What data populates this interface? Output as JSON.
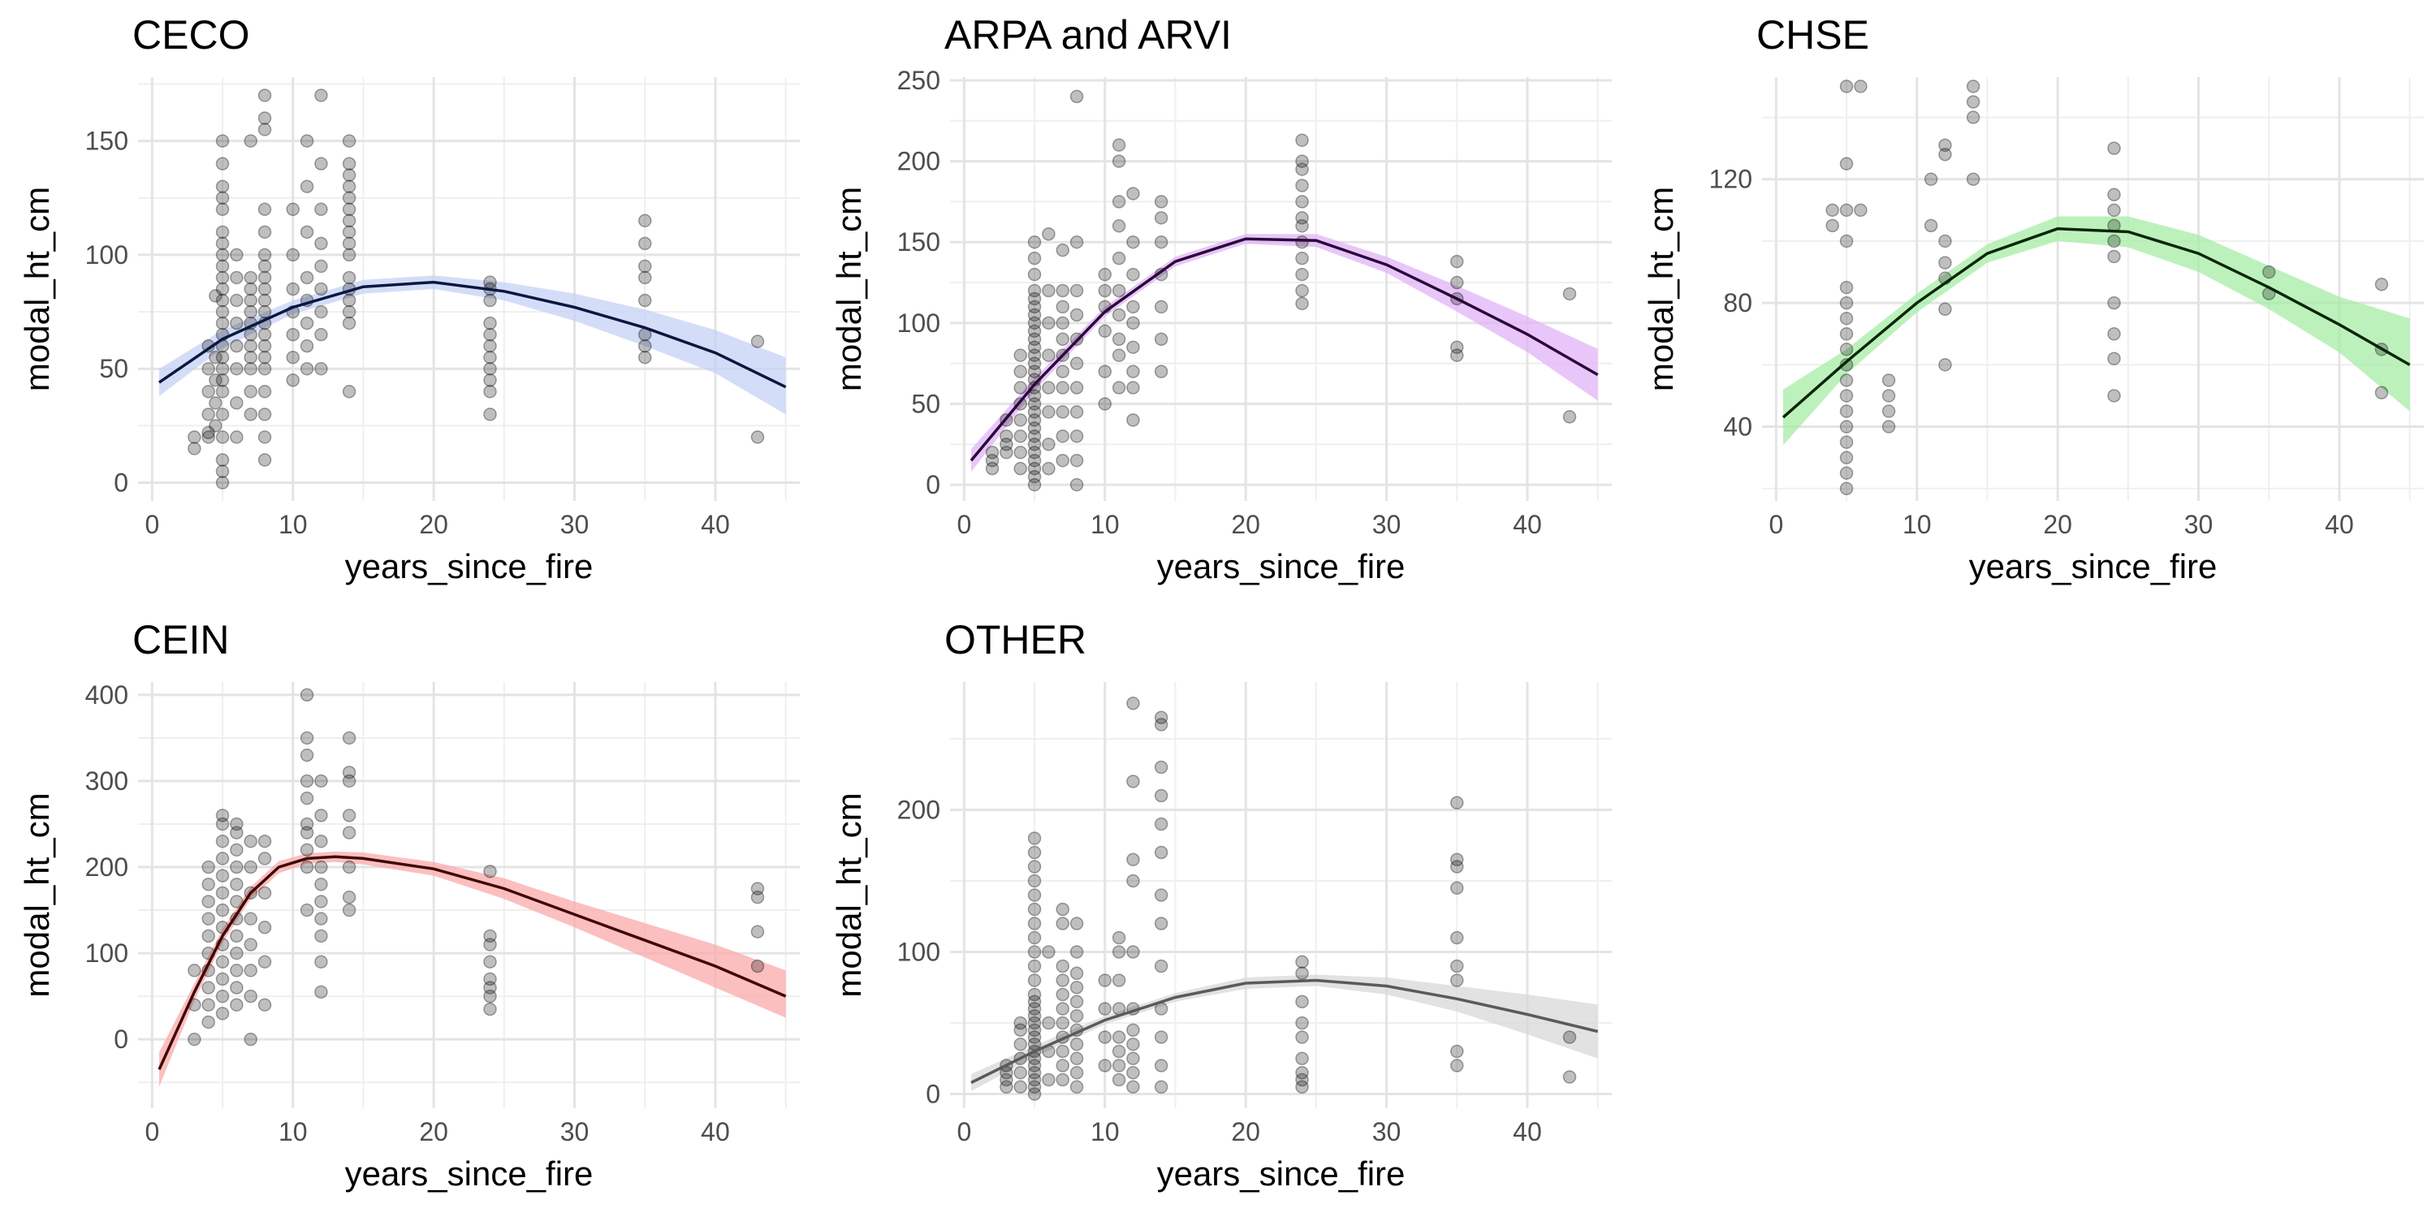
{
  "chart_data": [
    {
      "type": "scatter",
      "title": "CECO",
      "xlabel": "years_since_fire",
      "ylabel": "modal_ht_cm",
      "xlim": [
        -1,
        46
      ],
      "ylim": [
        -8,
        178
      ],
      "xticks": [
        0,
        10,
        20,
        30,
        40
      ],
      "yticks": [
        0,
        50,
        100,
        150
      ],
      "grid": true,
      "fill_color": "#c6d2f6",
      "line_color": "#0b1740",
      "points": [
        {
          "x": 3,
          "values": [
            15,
            20
          ]
        },
        {
          "x": 4,
          "values": [
            20,
            22,
            30,
            40,
            50,
            60
          ]
        },
        {
          "x": 4.5,
          "values": [
            25,
            35,
            45,
            55,
            82
          ]
        },
        {
          "x": 5,
          "values": [
            0,
            5,
            10,
            20,
            30,
            40,
            45,
            50,
            55,
            60,
            65,
            70,
            75,
            80,
            85,
            90,
            95,
            100,
            105,
            110,
            120,
            125,
            130,
            140,
            150
          ]
        },
        {
          "x": 6,
          "values": [
            20,
            35,
            50,
            60,
            70,
            80,
            90,
            100
          ]
        },
        {
          "x": 7,
          "values": [
            30,
            40,
            50,
            55,
            60,
            65,
            70,
            75,
            80,
            85,
            90,
            150
          ]
        },
        {
          "x": 8,
          "values": [
            10,
            20,
            30,
            40,
            50,
            55,
            60,
            65,
            70,
            75,
            80,
            85,
            90,
            95,
            100,
            110,
            120,
            155,
            160,
            170
          ]
        },
        {
          "x": 10,
          "values": [
            45,
            55,
            65,
            75,
            85,
            100,
            120
          ]
        },
        {
          "x": 11,
          "values": [
            50,
            60,
            70,
            80,
            90,
            110,
            130,
            150
          ]
        },
        {
          "x": 12,
          "values": [
            50,
            65,
            75,
            85,
            95,
            105,
            120,
            140,
            170
          ]
        },
        {
          "x": 14,
          "values": [
            40,
            70,
            75,
            80,
            85,
            90,
            100,
            105,
            110,
            115,
            120,
            125,
            130,
            135,
            140,
            150
          ]
        },
        {
          "x": 24,
          "values": [
            30,
            40,
            45,
            50,
            55,
            60,
            65,
            70,
            80,
            85,
            88
          ]
        },
        {
          "x": 35,
          "values": [
            55,
            60,
            65,
            80,
            90,
            95,
            105,
            115
          ]
        },
        {
          "x": 43,
          "values": [
            20,
            62
          ]
        }
      ],
      "fit": {
        "x": [
          0.5,
          5,
          10,
          15,
          20,
          25,
          30,
          35,
          40,
          45
        ],
        "y": [
          44,
          63,
          77,
          86,
          88,
          84,
          77,
          68,
          57,
          42
        ]
      },
      "band": {
        "lower": [
          38,
          59,
          74,
          83,
          85,
          80,
          71,
          60,
          48,
          30
        ],
        "upper": [
          50,
          67,
          80,
          89,
          91,
          88,
          83,
          76,
          67,
          55
        ]
      }
    },
    {
      "type": "scatter",
      "title": "ARPA and ARVI",
      "xlabel": "years_since_fire",
      "ylabel": "modal_ht_cm",
      "xlim": [
        -1,
        46
      ],
      "ylim": [
        -10,
        252
      ],
      "xticks": [
        0,
        10,
        20,
        30,
        40
      ],
      "yticks": [
        0,
        50,
        100,
        150,
        200,
        250
      ],
      "grid": true,
      "fill_color": "#e2b3f7",
      "line_color": "#2a0a3a",
      "points": [
        {
          "x": 2,
          "values": [
            10,
            15,
            20
          ]
        },
        {
          "x": 3,
          "values": [
            20,
            25,
            30,
            40
          ]
        },
        {
          "x": 4,
          "values": [
            10,
            20,
            30,
            40,
            50,
            60,
            70,
            80
          ]
        },
        {
          "x": 5,
          "values": [
            0,
            5,
            10,
            15,
            20,
            25,
            30,
            35,
            40,
            45,
            50,
            55,
            60,
            65,
            70,
            75,
            80,
            85,
            90,
            95,
            100,
            105,
            110,
            115,
            120,
            130,
            140,
            150
          ]
        },
        {
          "x": 6,
          "values": [
            10,
            25,
            45,
            60,
            80,
            100,
            120,
            155
          ]
        },
        {
          "x": 7,
          "values": [
            15,
            30,
            45,
            60,
            70,
            80,
            90,
            100,
            110,
            120,
            145
          ]
        },
        {
          "x": 8,
          "values": [
            0,
            15,
            30,
            45,
            60,
            75,
            90,
            105,
            120,
            150,
            240
          ]
        },
        {
          "x": 10,
          "values": [
            50,
            70,
            95,
            110,
            120,
            130
          ]
        },
        {
          "x": 11,
          "values": [
            60,
            80,
            90,
            105,
            120,
            140,
            160,
            175,
            200,
            210
          ]
        },
        {
          "x": 12,
          "values": [
            40,
            60,
            70,
            85,
            100,
            110,
            130,
            150,
            180
          ]
        },
        {
          "x": 14,
          "values": [
            70,
            90,
            110,
            130,
            150,
            165,
            175
          ]
        },
        {
          "x": 24,
          "values": [
            112,
            120,
            130,
            140,
            150,
            160,
            165,
            175,
            185,
            195,
            200,
            213
          ]
        },
        {
          "x": 35,
          "values": [
            80,
            85,
            115,
            125,
            138
          ]
        },
        {
          "x": 43,
          "values": [
            42,
            118
          ]
        }
      ],
      "fit": {
        "x": [
          0.5,
          5,
          10,
          15,
          20,
          25,
          30,
          35,
          40,
          45
        ],
        "y": [
          15,
          62,
          107,
          138,
          152,
          151,
          136,
          115,
          93,
          68
        ]
      },
      "band": {
        "lower": [
          8,
          58,
          104,
          135,
          149,
          147,
          131,
          107,
          82,
          52
        ],
        "upper": [
          22,
          66,
          110,
          141,
          155,
          155,
          141,
          123,
          104,
          84
        ]
      }
    },
    {
      "type": "scatter",
      "title": "CHSE",
      "xlabel": "years_since_fire",
      "ylabel": "modal_ht_cm",
      "xlim": [
        -1,
        46
      ],
      "ylim": [
        16,
        153
      ],
      "xticks": [
        0,
        10,
        20,
        30,
        40
      ],
      "yticks": [
        40,
        80,
        120
      ],
      "grid": true,
      "fill_color": "#a6eca6",
      "line_color": "#0a260a",
      "points": [
        {
          "x": 4,
          "values": [
            105,
            110
          ]
        },
        {
          "x": 5,
          "values": [
            20,
            25,
            30,
            35,
            40,
            45,
            50,
            55,
            60,
            65,
            70,
            75,
            80,
            85,
            100,
            110,
            125,
            150
          ]
        },
        {
          "x": 6,
          "values": [
            110,
            150
          ]
        },
        {
          "x": 8,
          "values": [
            40,
            45,
            50,
            55
          ]
        },
        {
          "x": 11,
          "values": [
            105,
            120
          ]
        },
        {
          "x": 12,
          "values": [
            60,
            78,
            88,
            93,
            100,
            128,
            131
          ]
        },
        {
          "x": 14,
          "values": [
            120,
            140,
            145,
            150
          ]
        },
        {
          "x": 24,
          "values": [
            50,
            62,
            70,
            80,
            95,
            100,
            105,
            110,
            115,
            130
          ]
        },
        {
          "x": 35,
          "values": [
            83,
            90
          ]
        },
        {
          "x": 43,
          "values": [
            51,
            65,
            86
          ]
        }
      ],
      "fit": {
        "x": [
          0.5,
          5,
          10,
          15,
          20,
          25,
          30,
          35,
          40,
          45
        ],
        "y": [
          43,
          61,
          80,
          96,
          104,
          103,
          96,
          85,
          73,
          60
        ]
      },
      "band": {
        "lower": [
          34,
          57,
          77,
          93,
          100,
          98,
          90,
          78,
          64,
          45
        ],
        "upper": [
          52,
          65,
          83,
          99,
          108,
          108,
          102,
          92,
          82,
          75
        ]
      }
    },
    {
      "type": "scatter",
      "title": "CEIN",
      "xlabel": "years_since_fire",
      "ylabel": "modal_ht_cm",
      "xlim": [
        -1,
        46
      ],
      "ylim": [
        -80,
        415
      ],
      "xticks": [
        0,
        10,
        20,
        30,
        40
      ],
      "yticks": [
        0,
        100,
        200,
        300,
        400
      ],
      "grid": true,
      "fill_color": "#fbaaaa",
      "line_color": "#400808",
      "points": [
        {
          "x": 3,
          "values": [
            0,
            40,
            80
          ]
        },
        {
          "x": 4,
          "values": [
            20,
            40,
            60,
            80,
            100,
            120,
            140,
            160,
            180,
            200
          ]
        },
        {
          "x": 5,
          "values": [
            30,
            50,
            70,
            90,
            110,
            130,
            150,
            170,
            190,
            210,
            230,
            250,
            260
          ]
        },
        {
          "x": 6,
          "values": [
            40,
            60,
            80,
            100,
            120,
            140,
            160,
            180,
            200,
            220,
            240,
            250
          ]
        },
        {
          "x": 7,
          "values": [
            0,
            50,
            80,
            110,
            140,
            170,
            200,
            230
          ]
        },
        {
          "x": 8,
          "values": [
            40,
            90,
            130,
            170,
            210,
            230
          ]
        },
        {
          "x": 11,
          "values": [
            150,
            200,
            220,
            240,
            250,
            280,
            300,
            330,
            350,
            400
          ]
        },
        {
          "x": 12,
          "values": [
            55,
            90,
            120,
            140,
            160,
            180,
            200,
            230,
            260,
            300
          ]
        },
        {
          "x": 14,
          "values": [
            150,
            165,
            200,
            240,
            260,
            300,
            310,
            350
          ]
        },
        {
          "x": 24,
          "values": [
            35,
            50,
            60,
            70,
            90,
            110,
            120,
            195
          ]
        },
        {
          "x": 43,
          "values": [
            85,
            125,
            165,
            175
          ]
        }
      ],
      "fit": {
        "x": [
          0.5,
          3,
          5,
          7,
          9,
          11,
          13,
          15,
          20,
          25,
          30,
          35,
          40,
          45
        ],
        "y": [
          -35,
          55,
          120,
          170,
          200,
          210,
          212,
          210,
          198,
          175,
          145,
          115,
          85,
          50
        ]
      },
      "band": {
        "lower": [
          -55,
          45,
          112,
          163,
          193,
          204,
          206,
          203,
          190,
          163,
          130,
          95,
          60,
          25
        ],
        "upper": [
          -15,
          65,
          128,
          177,
          207,
          216,
          218,
          217,
          206,
          187,
          160,
          135,
          110,
          80
        ]
      }
    },
    {
      "type": "scatter",
      "title": "OTHER",
      "xlabel": "years_since_fire",
      "ylabel": "modal_ht_cm",
      "xlim": [
        -1,
        46
      ],
      "ylim": [
        -10,
        290
      ],
      "xticks": [
        0,
        10,
        20,
        30,
        40
      ],
      "yticks": [
        0,
        100,
        200
      ],
      "grid": true,
      "fill_color": "#d8d8d8",
      "line_color": "#5a5a5a",
      "points": [
        {
          "x": 3,
          "values": [
            5,
            10,
            15,
            20
          ]
        },
        {
          "x": 4,
          "values": [
            5,
            15,
            25,
            35,
            45,
            50
          ]
        },
        {
          "x": 5,
          "values": [
            0,
            5,
            10,
            15,
            20,
            25,
            30,
            35,
            40,
            45,
            50,
            55,
            60,
            65,
            70,
            80,
            90,
            100,
            110,
            120,
            130,
            140,
            150,
            160,
            170,
            180
          ]
        },
        {
          "x": 6,
          "values": [
            10,
            30,
            50,
            100
          ]
        },
        {
          "x": 7,
          "values": [
            10,
            20,
            30,
            40,
            50,
            60,
            70,
            80,
            90,
            120,
            130
          ]
        },
        {
          "x": 8,
          "values": [
            5,
            15,
            25,
            35,
            45,
            55,
            65,
            75,
            85,
            100,
            120
          ]
        },
        {
          "x": 10,
          "values": [
            20,
            40,
            60,
            80
          ]
        },
        {
          "x": 11,
          "values": [
            10,
            20,
            30,
            40,
            60,
            80,
            100,
            110
          ]
        },
        {
          "x": 12,
          "values": [
            5,
            15,
            25,
            35,
            45,
            60,
            100,
            150,
            165,
            220,
            275
          ]
        },
        {
          "x": 14,
          "values": [
            5,
            20,
            40,
            60,
            90,
            120,
            140,
            170,
            190,
            210,
            230,
            260,
            265
          ]
        },
        {
          "x": 24,
          "values": [
            5,
            10,
            15,
            25,
            40,
            50,
            65,
            85,
            93
          ]
        },
        {
          "x": 35,
          "values": [
            20,
            30,
            80,
            90,
            110,
            145,
            160,
            165,
            205
          ]
        },
        {
          "x": 43,
          "values": [
            12,
            40
          ]
        }
      ],
      "fit": {
        "x": [
          0.5,
          5,
          10,
          15,
          20,
          25,
          30,
          35,
          40,
          45
        ],
        "y": [
          8,
          30,
          52,
          68,
          78,
          80,
          76,
          67,
          56,
          44
        ]
      },
      "band": {
        "lower": [
          2,
          26,
          49,
          65,
          74,
          76,
          70,
          58,
          42,
          25
        ],
        "upper": [
          14,
          34,
          55,
          71,
          82,
          84,
          82,
          76,
          70,
          63
        ]
      }
    }
  ]
}
